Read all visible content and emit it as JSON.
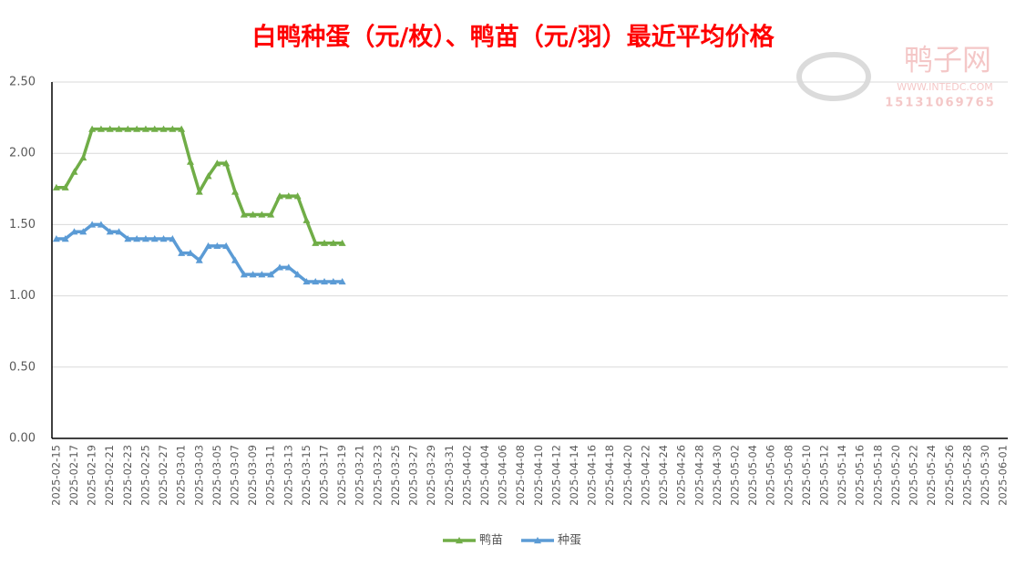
{
  "chart_data": {
    "type": "line",
    "title": "白鸭种蛋（元/枚）、鸭苗（元/羽）最近平均价格",
    "watermark": [
      "鸭子网",
      "WWW.INTEDC.COM",
      "15131069765"
    ],
    "categories": [
      "2025-02-15",
      null,
      "2025-02-17",
      null,
      "2025-02-19",
      null,
      "2025-02-21",
      null,
      "2025-02-23",
      null,
      "2025-02-25",
      null,
      "2025-02-27",
      null,
      "2025-03-01",
      null,
      "2025-03-03",
      null,
      "2025-03-05",
      null,
      "2025-03-07",
      null,
      "2025-03-09",
      null,
      "2025-03-11",
      null,
      "2025-03-13",
      null,
      "2025-03-15",
      null,
      "2025-03-17",
      null,
      "2025-03-19",
      null,
      "2025-03-21",
      null,
      "2025-03-23",
      null,
      "2025-03-25",
      null,
      "2025-03-27",
      null,
      "2025-03-29",
      null,
      "2025-03-31",
      null,
      "2025-04-02",
      null,
      "2025-04-04",
      null,
      "2025-04-06",
      null,
      "2025-04-08",
      null,
      "2025-04-10",
      null,
      "2025-04-12",
      null,
      "2025-04-14",
      null,
      "2025-04-16",
      null,
      "2025-04-18",
      null,
      "2025-04-20",
      null,
      "2025-04-22",
      null,
      "2025-04-24",
      null,
      "2025-04-26",
      null,
      "2025-04-28",
      null,
      "2025-04-30",
      null,
      "2025-05-02",
      null,
      "2025-05-04",
      null,
      "2025-05-06",
      null,
      "2025-05-08",
      null,
      "2025-05-10",
      null,
      "2025-05-12",
      null,
      "2025-05-14",
      null,
      "2025-05-16",
      null,
      "2025-05-18",
      null,
      "2025-05-20",
      null,
      "2025-05-22",
      null,
      "2025-05-24",
      null,
      "2025-05-26",
      null,
      "2025-05-28",
      null,
      "2025-05-30",
      null,
      "2025-06-01"
    ],
    "series": [
      {
        "name": "鸭苗",
        "color": "#70ad47",
        "values": [
          1.76,
          1.76,
          1.87,
          1.97,
          2.17,
          2.17,
          2.17,
          2.17,
          2.17,
          2.17,
          2.17,
          2.17,
          2.17,
          2.17,
          2.17,
          1.94,
          1.73,
          1.84,
          1.93,
          1.93,
          1.73,
          1.57,
          1.57,
          1.57,
          1.57,
          1.7,
          1.7,
          1.7,
          1.53,
          1.37,
          1.37,
          1.37,
          1.37,
          null,
          null,
          null,
          null,
          null,
          null,
          null,
          null,
          null,
          null,
          null,
          null,
          null,
          null,
          null,
          null,
          null,
          null,
          null,
          null,
          null,
          null,
          null,
          null,
          null,
          null,
          null,
          null,
          null,
          null,
          null,
          null,
          null,
          null,
          null,
          null,
          null,
          null,
          null,
          null,
          null,
          null,
          null,
          null,
          null,
          null,
          null,
          null,
          null,
          null,
          null,
          null,
          null,
          null,
          null,
          null,
          null,
          null,
          null,
          null,
          null,
          null,
          null,
          null,
          null,
          null,
          null,
          null,
          null,
          null,
          null,
          null,
          null,
          null
        ]
      },
      {
        "name": "种蛋",
        "color": "#5b9bd5",
        "values": [
          1.4,
          1.4,
          1.45,
          1.45,
          1.5,
          1.5,
          1.45,
          1.45,
          1.4,
          1.4,
          1.4,
          1.4,
          1.4,
          1.4,
          1.3,
          1.3,
          1.25,
          1.35,
          1.35,
          1.35,
          1.25,
          1.15,
          1.15,
          1.15,
          1.15,
          1.2,
          1.2,
          1.15,
          1.1,
          1.1,
          1.1,
          1.1,
          1.1,
          null,
          null,
          null,
          null,
          null,
          null,
          null,
          null,
          null,
          null,
          null,
          null,
          null,
          null,
          null,
          null,
          null,
          null,
          null,
          null,
          null,
          null,
          null,
          null,
          null,
          null,
          null,
          null,
          null,
          null,
          null,
          null,
          null,
          null,
          null,
          null,
          null,
          null,
          null,
          null,
          null,
          null,
          null,
          null,
          null,
          null,
          null,
          null,
          null,
          null,
          null,
          null,
          null,
          null,
          null,
          null,
          null,
          null,
          null,
          null,
          null,
          null,
          null,
          null,
          null,
          null,
          null,
          null,
          null,
          null,
          null,
          null,
          null,
          null
        ]
      }
    ],
    "ylim": [
      0,
      2.5
    ],
    "yticks": [
      {
        "value": 0,
        "label": "0.00"
      },
      {
        "value": 0.5,
        "label": "0.50"
      },
      {
        "value": 1,
        "label": "1.00"
      },
      {
        "value": 1.5,
        "label": "1.50"
      },
      {
        "value": 2,
        "label": "2.00"
      },
      {
        "value": 2.5,
        "label": "2.50"
      }
    ],
    "grid": true,
    "legend": "bottom"
  }
}
